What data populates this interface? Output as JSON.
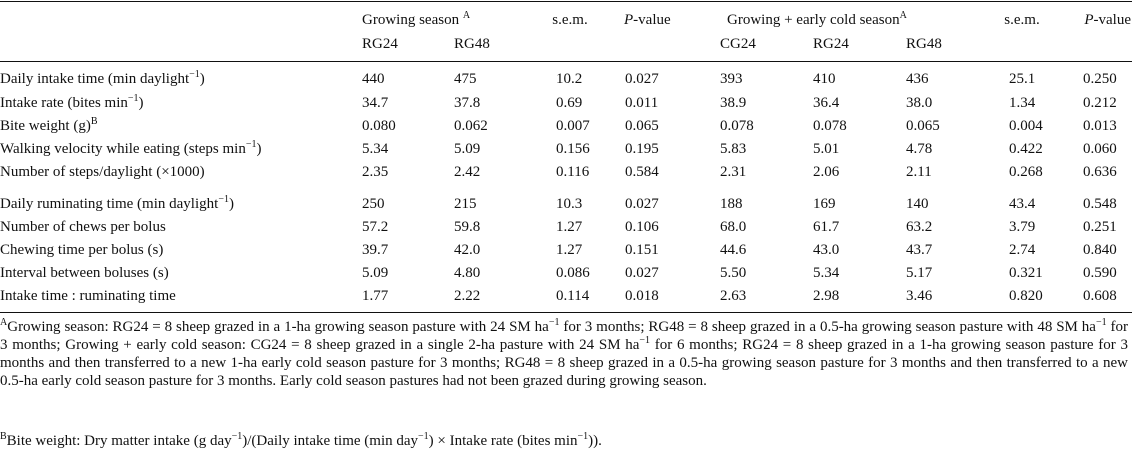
{
  "header": {
    "growing_group": "Growing season",
    "growing_sup": "A",
    "sem1": "s.e.m.",
    "p1": "P",
    "p_suffix": "-value",
    "early_group": "Growing + early cold season",
    "early_sup": "A",
    "sem2": "s.e.m.",
    "p2": "P",
    "sub": [
      "RG24",
      "RG48",
      "CG24",
      "RG24",
      "RG48"
    ]
  },
  "rows": [
    {
      "label": "Daily intake time (min daylight",
      "sup": "−1",
      "label_end": ")",
      "v": [
        "440",
        "475",
        "10.2",
        "0.027",
        "393",
        "410",
        "436",
        "25.1",
        "0.250"
      ]
    },
    {
      "label": "Intake rate (bites min",
      "sup": "−1",
      "label_end": ")",
      "v": [
        "34.7",
        "37.8",
        "0.69",
        "0.011",
        "38.9",
        "36.4",
        "38.0",
        "1.34",
        "0.212"
      ]
    },
    {
      "label": "Bite weight (g)",
      "sup": "B",
      "label_end": "",
      "v": [
        "0.080",
        "0.062",
        "0.007",
        "0.065",
        "0.078",
        "0.078",
        "0.065",
        "0.004",
        "0.013"
      ]
    },
    {
      "label": "Walking velocity while eating (steps min",
      "sup": "−1",
      "label_end": ")",
      "v": [
        "5.34",
        "5.09",
        "0.156",
        "0.195",
        "5.83",
        "5.01",
        "4.78",
        "0.422",
        "0.060"
      ]
    },
    {
      "label": "Number of steps/daylight (×1000)",
      "sup": "",
      "label_end": "",
      "v": [
        "2.35",
        "2.42",
        "0.116",
        "0.584",
        "2.31",
        "2.06",
        "2.11",
        "0.268",
        "0.636"
      ]
    },
    {
      "label": "Daily ruminating time (min daylight",
      "sup": "−1",
      "label_end": ")",
      "v": [
        "250",
        "215",
        "10.3",
        "0.027",
        "188",
        "169",
        "140",
        "43.4",
        "0.548"
      ]
    },
    {
      "label": "Number of chews per bolus",
      "sup": "",
      "label_end": "",
      "v": [
        "57.2",
        "59.8",
        "1.27",
        "0.106",
        "68.0",
        "61.7",
        "63.2",
        "3.79",
        "0.251"
      ]
    },
    {
      "label": "Chewing time per bolus (s)",
      "sup": "",
      "label_end": "",
      "v": [
        "39.7",
        "42.0",
        "1.27",
        "0.151",
        "44.6",
        "43.0",
        "43.7",
        "2.74",
        "0.840"
      ]
    },
    {
      "label": "Interval between boluses (s)",
      "sup": "",
      "label_end": "",
      "v": [
        "5.09",
        "4.80",
        "0.086",
        "0.027",
        "5.50",
        "5.34",
        "5.17",
        "0.321",
        "0.590"
      ]
    },
    {
      "label": "Intake time : ruminating time",
      "sup": "",
      "label_end": "",
      "v": [
        "1.77",
        "2.22",
        "0.114",
        "0.018",
        "2.63",
        "2.98",
        "3.46",
        "0.820",
        "0.608"
      ]
    }
  ],
  "footnotes": {
    "a_mark": "A",
    "a_parts": [
      "Growing season: RG24 = 8 sheep grazed in a 1-ha growing season pasture with 24 SM ha",
      "−1",
      " for 3 months; RG48 = 8 sheep grazed in a 0.5-ha growing season pasture with 48 SM ha",
      "−1",
      " for 3 months; Growing + early cold season: CG24 = 8 sheep grazed in a single 2-ha pasture with 24 SM ha",
      "−1",
      " for 6 months; RG24 = 8 sheep grazed in a 1-ha growing season pasture for 3 months and then transferred to a new 1-ha early cold season pasture for 3 months; RG48 = 8 sheep grazed in a 0.5-ha growing season pasture for 3 months and then transferred to a new 0.5-ha early cold season pasture for 3 months. Early cold season pastures had not been grazed during growing season."
    ],
    "b_mark": "B",
    "b_parts": [
      "Bite weight: Dry matter intake (g day",
      "−1",
      ")/(Daily intake time (min day",
      "−1",
      ") × Intake rate (bites min",
      "−1",
      "))."
    ]
  }
}
